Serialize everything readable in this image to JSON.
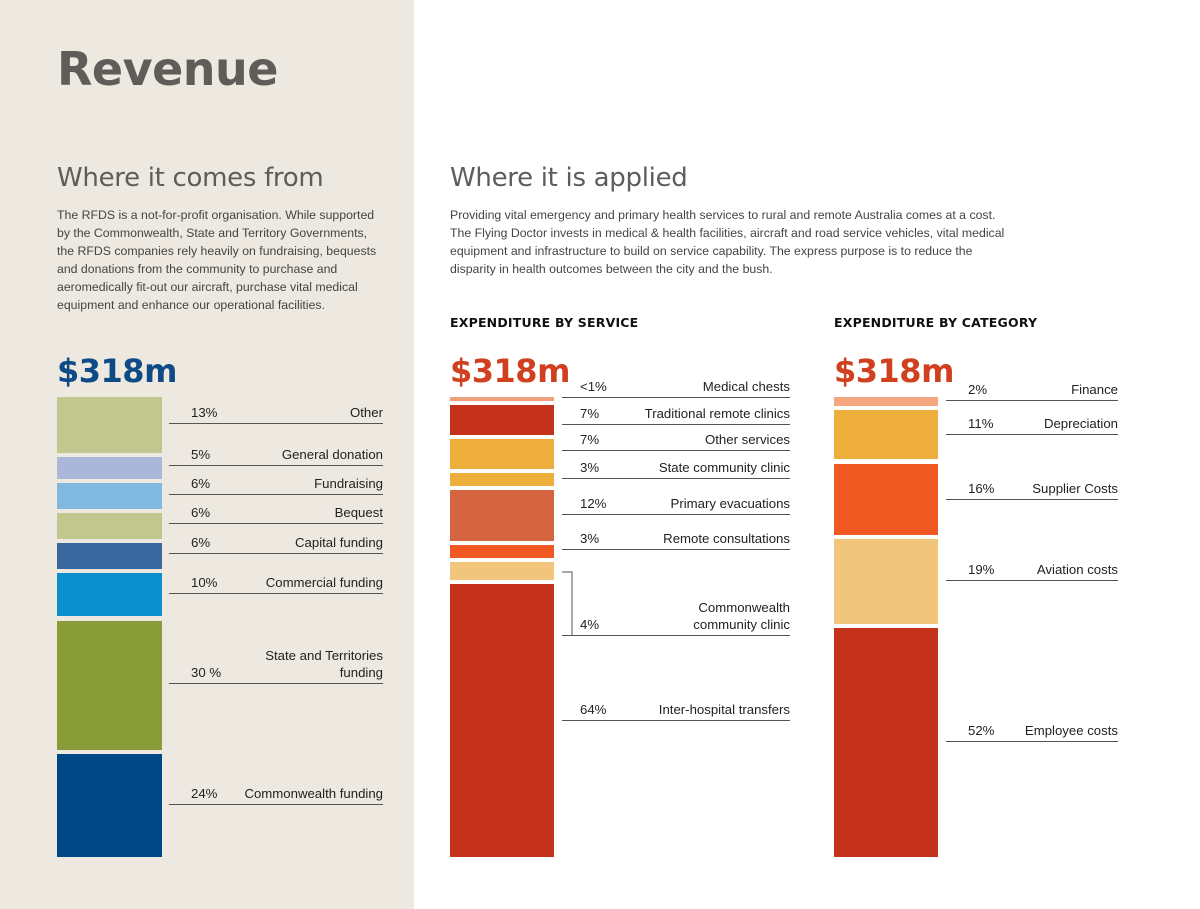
{
  "title": "Revenue",
  "left": {
    "heading": "Where it comes from",
    "text": "The RFDS is a not-for-profit organisation. While supported by the Commonwealth, State and Territory Governments, the RFDS companies rely heavily on fundraising, bequests and donations from the community to purchase and aeromedically fit-out our aircraft, purchase vital medical equipment and enhance our operational facilities."
  },
  "right": {
    "heading": "Where it is applied",
    "text": "Providing vital emergency and primary health services to rural and remote Australia comes at a cost. The Flying Doctor invests in medical & health facilities, aircraft and road service vehicles, vital medical equipment and infrastructure to build on service capability. The express purpose is to reduce the disparity in health outcomes between the city and the bush."
  },
  "chart_data": [
    {
      "type": "bar",
      "stacked": true,
      "title": "",
      "total": "$318m",
      "categories": [
        "Other",
        "General donation",
        "Fundraising",
        "Bequest",
        "Capital funding",
        "Commercial funding",
        "State and Territories funding",
        "Commonwealth funding"
      ],
      "pct_labels": [
        "13%",
        "5%",
        "6%",
        "6%",
        "6%",
        "10%",
        "30 %",
        "24%"
      ],
      "values": [
        13,
        5,
        6,
        6,
        6,
        10,
        30,
        24
      ],
      "colors": [
        "#c0c78f",
        "#aab7d9",
        "#82b9e1",
        "#c0c78f",
        "#3a67a0",
        "#0a90cc",
        "#8a9c37",
        "#004785"
      ],
      "color": "#0e4a86"
    },
    {
      "type": "bar",
      "stacked": true,
      "title": "EXPENDITURE BY SERVICE",
      "total": "$318m",
      "categories": [
        "Medical chests",
        "Traditional remote clinics",
        "Other services",
        "State community clinic",
        "Primary evacuations",
        "Remote consultations",
        "Commonwealth community clinic",
        "Inter-hospital transfers"
      ],
      "pct_labels": [
        "<1%",
        "7%",
        "7%",
        "3%",
        "12%",
        "3%",
        "4%",
        "64%"
      ],
      "values": [
        0.5,
        7,
        7,
        3,
        12,
        3,
        4,
        64
      ],
      "colors": [
        "#f0a07a",
        "#c4321c",
        "#eeae3c",
        "#eeae3c",
        "#d56440",
        "#f05a22",
        "#f2c57c",
        "#c4321c"
      ],
      "color": "#d0401f"
    },
    {
      "type": "bar",
      "stacked": true,
      "title": "EXPENDITURE BY CATEGORY",
      "total": "$318m",
      "categories": [
        "Finance",
        "Depreciation",
        "Supplier Costs",
        "Aviation costs",
        "Employee costs"
      ],
      "pct_labels": [
        "2%",
        "11%",
        "16%",
        "19%",
        "52%"
      ],
      "values": [
        2,
        11,
        16,
        19,
        52
      ],
      "colors": [
        "#f5a57f",
        "#eeae3c",
        "#f05a22",
        "#f2c57c",
        "#c4321c"
      ],
      "color": "#d0401f"
    }
  ]
}
